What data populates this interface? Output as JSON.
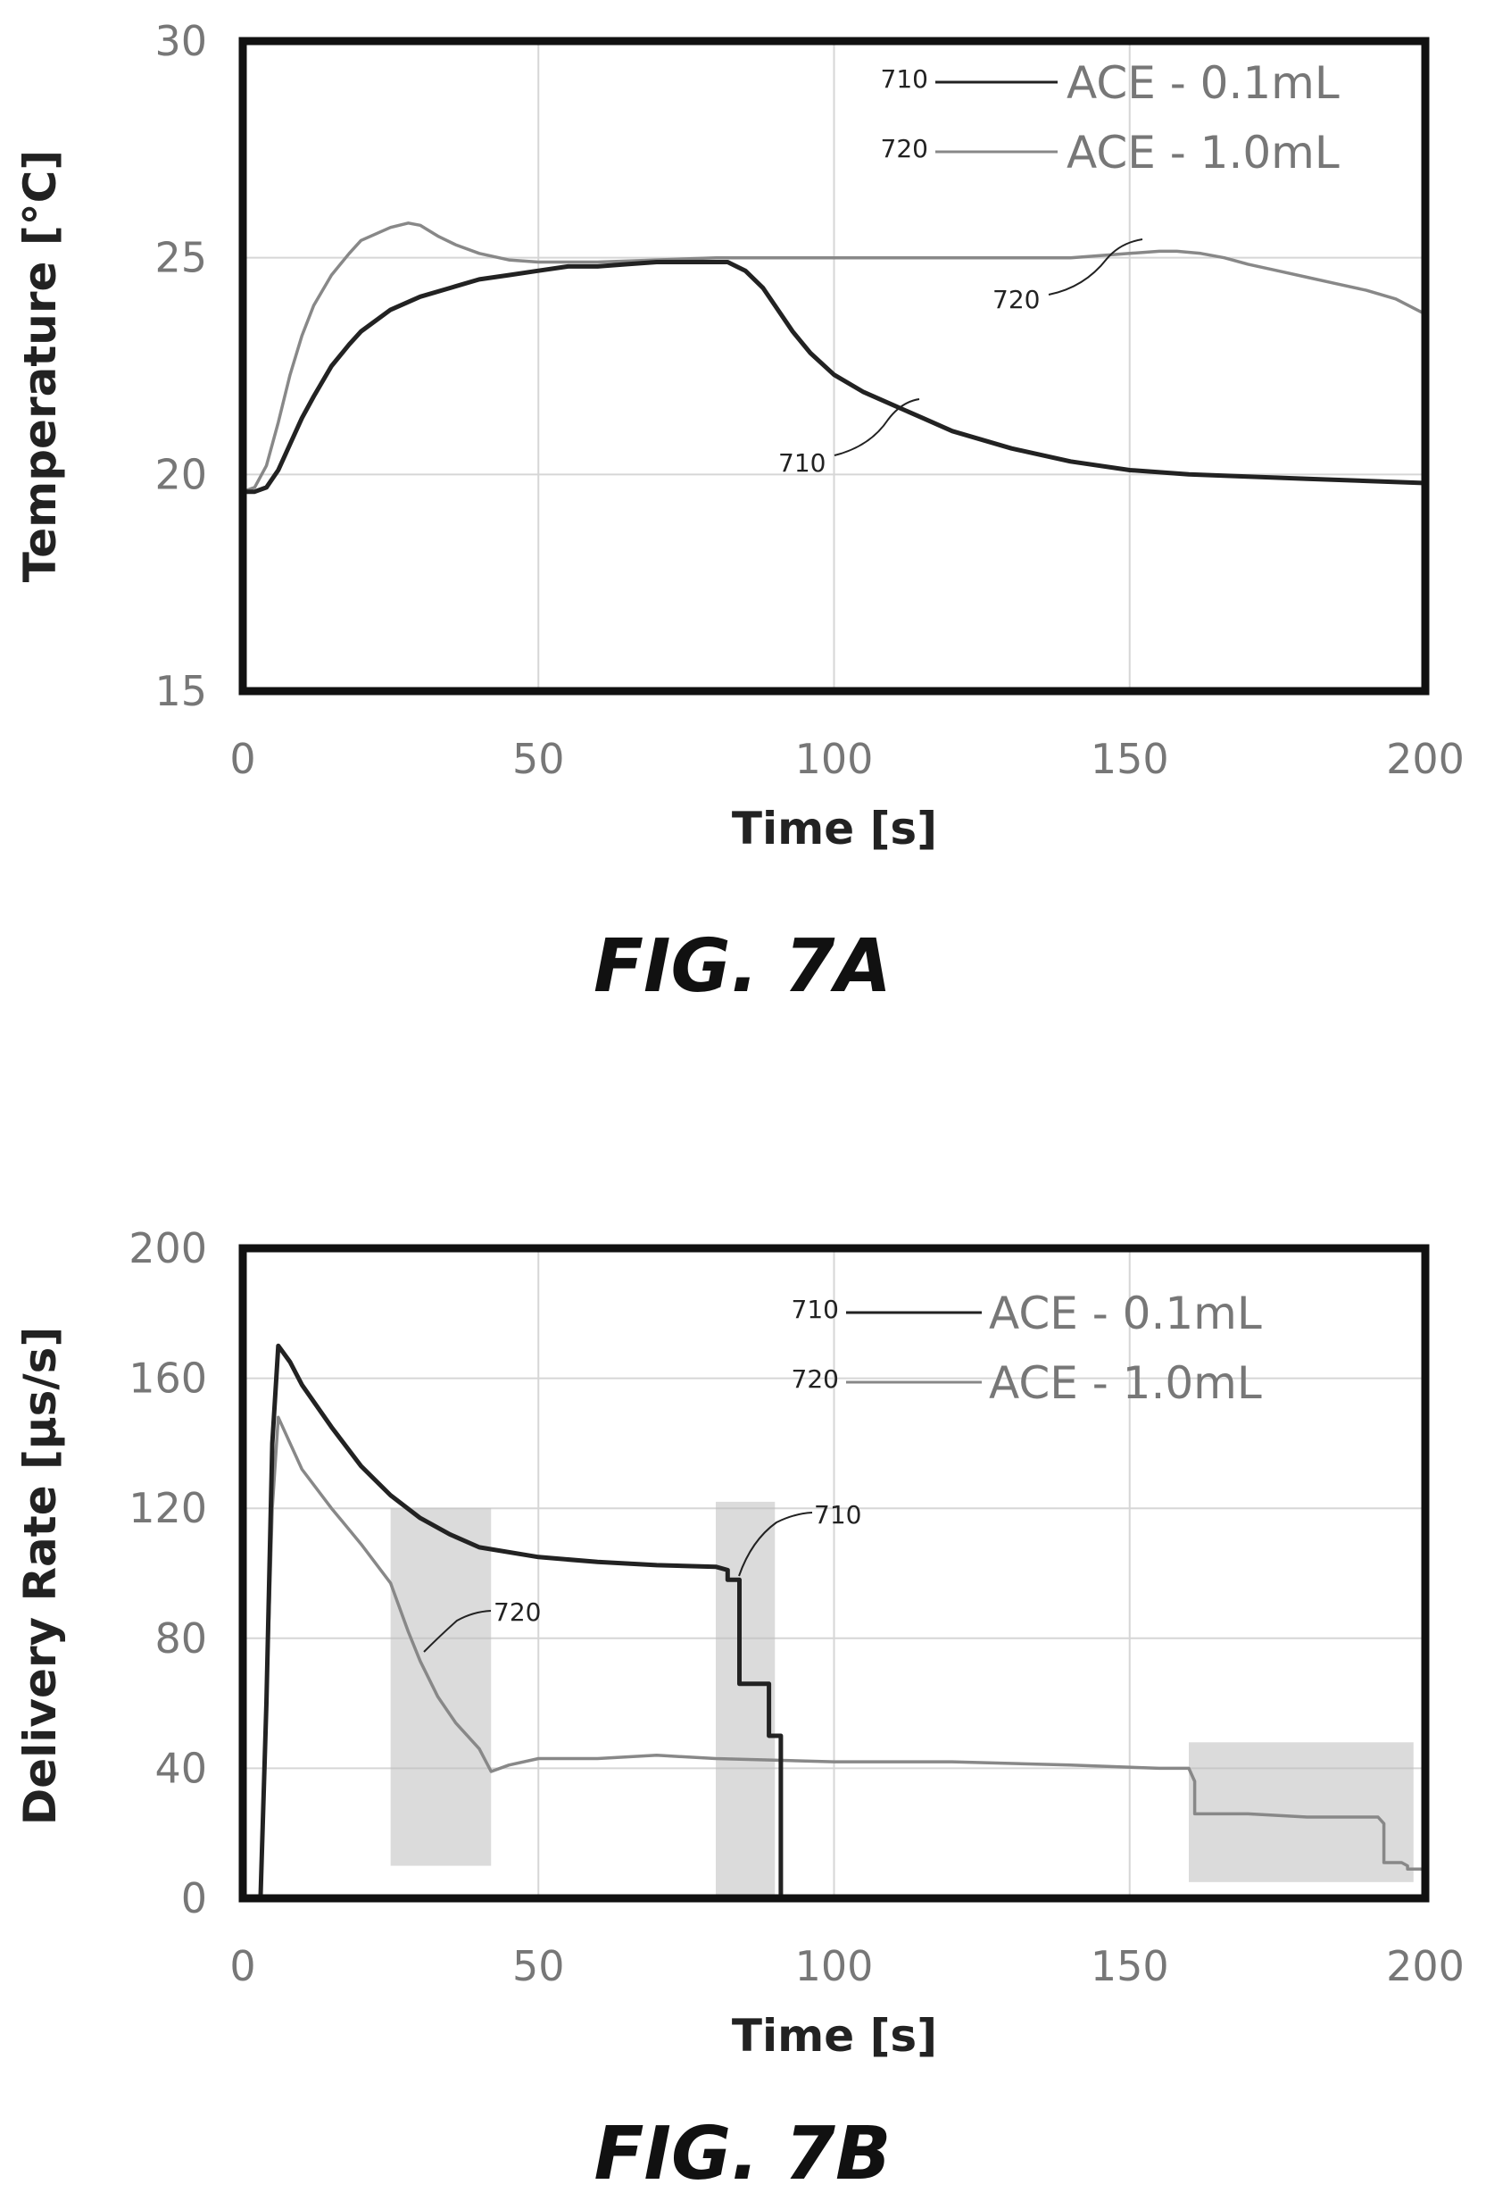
{
  "chart_data": [
    {
      "type": "line",
      "figure_label": "FIG. 7A",
      "xlabel": "Time [s]",
      "ylabel": "Temperature [°C]",
      "xlim": [
        0,
        200
      ],
      "ylim": [
        15,
        30
      ],
      "xticks": [
        "0",
        "50",
        "100",
        "150",
        "200"
      ],
      "yticks": [
        "15",
        "20",
        "25",
        "30"
      ],
      "grid": true,
      "legend_position": "top-right",
      "series": [
        {
          "name": "ACE - 0.1mL",
          "ref": "710",
          "color": "#222222",
          "x": [
            0,
            2,
            4,
            6,
            8,
            10,
            12,
            15,
            18,
            20,
            25,
            30,
            35,
            40,
            45,
            50,
            55,
            60,
            65,
            70,
            75,
            80,
            82,
            85,
            88,
            90,
            93,
            96,
            100,
            105,
            110,
            115,
            120,
            130,
            140,
            150,
            160,
            170,
            180,
            190,
            200
          ],
          "y": [
            19.6,
            19.6,
            19.7,
            20.1,
            20.7,
            21.3,
            21.8,
            22.5,
            23.0,
            23.3,
            23.8,
            24.1,
            24.3,
            24.5,
            24.6,
            24.7,
            24.8,
            24.8,
            24.85,
            24.9,
            24.9,
            24.9,
            24.9,
            24.7,
            24.3,
            23.9,
            23.3,
            22.8,
            22.3,
            21.9,
            21.6,
            21.3,
            21.0,
            20.6,
            20.3,
            20.1,
            20.0,
            19.95,
            19.9,
            19.85,
            19.8
          ]
        },
        {
          "name": "ACE - 1.0mL",
          "ref": "720",
          "color": "#888888",
          "x": [
            0,
            2,
            4,
            6,
            8,
            10,
            12,
            15,
            18,
            20,
            25,
            28,
            30,
            33,
            36,
            40,
            45,
            50,
            60,
            70,
            80,
            90,
            100,
            110,
            120,
            130,
            140,
            145,
            150,
            155,
            158,
            162,
            166,
            170,
            175,
            180,
            185,
            190,
            195,
            200
          ],
          "y": [
            19.6,
            19.7,
            20.2,
            21.2,
            22.3,
            23.2,
            23.9,
            24.6,
            25.1,
            25.4,
            25.7,
            25.8,
            25.75,
            25.5,
            25.3,
            25.1,
            24.95,
            24.9,
            24.9,
            24.95,
            25.0,
            25.0,
            25.0,
            25.0,
            25.0,
            25.0,
            25.0,
            25.05,
            25.1,
            25.15,
            25.15,
            25.1,
            25.0,
            24.85,
            24.7,
            24.55,
            24.4,
            24.25,
            24.05,
            23.7
          ]
        }
      ]
    },
    {
      "type": "line",
      "figure_label": "FIG. 7B",
      "xlabel": "Time [s]",
      "ylabel": "Delivery Rate [µs/s]",
      "xlim": [
        0,
        200
      ],
      "ylim": [
        0,
        200
      ],
      "xticks": [
        "0",
        "50",
        "100",
        "150",
        "200"
      ],
      "yticks": [
        "0",
        "40",
        "80",
        "120",
        "160",
        "200"
      ],
      "grid": true,
      "legend_position": "top-right",
      "series": [
        {
          "name": "ACE - 0.1mL",
          "ref": "710",
          "color": "#222222",
          "x": [
            3,
            4,
            5,
            6,
            8,
            10,
            15,
            20,
            25,
            30,
            35,
            40,
            50,
            60,
            70,
            80,
            82,
            82,
            84,
            84,
            89,
            89,
            91,
            91
          ],
          "y": [
            0,
            60,
            140,
            170,
            165,
            158,
            145,
            133,
            124,
            117,
            112,
            108,
            105,
            103.5,
            102.5,
            102,
            101,
            98,
            98,
            66,
            66,
            50,
            50,
            0
          ]
        },
        {
          "name": "ACE - 1.0mL",
          "ref": "720",
          "color": "#888888",
          "x": [
            3,
            4,
            5,
            6,
            8,
            10,
            15,
            20,
            25,
            28,
            30,
            33,
            36,
            40,
            42,
            45,
            50,
            60,
            70,
            80,
            100,
            120,
            140,
            155,
            160,
            161,
            161,
            170,
            180,
            192,
            193,
            193,
            196,
            197,
            197,
            200
          ],
          "y": [
            0,
            60,
            120,
            148,
            140,
            132,
            120,
            109,
            97,
            82,
            73,
            62,
            54,
            46,
            39,
            41,
            43,
            43,
            44,
            43,
            42,
            42,
            41,
            40,
            40,
            36,
            26,
            26,
            25,
            25,
            23,
            11,
            11,
            10,
            9,
            9
          ]
        }
      ],
      "shaded_regions": [
        {
          "x": [
            25,
            42
          ],
          "y": [
            10,
            120
          ]
        },
        {
          "x": [
            80,
            90
          ],
          "y": [
            0,
            122
          ]
        },
        {
          "x": [
            160,
            198
          ],
          "y": [
            5,
            48
          ]
        }
      ]
    }
  ]
}
